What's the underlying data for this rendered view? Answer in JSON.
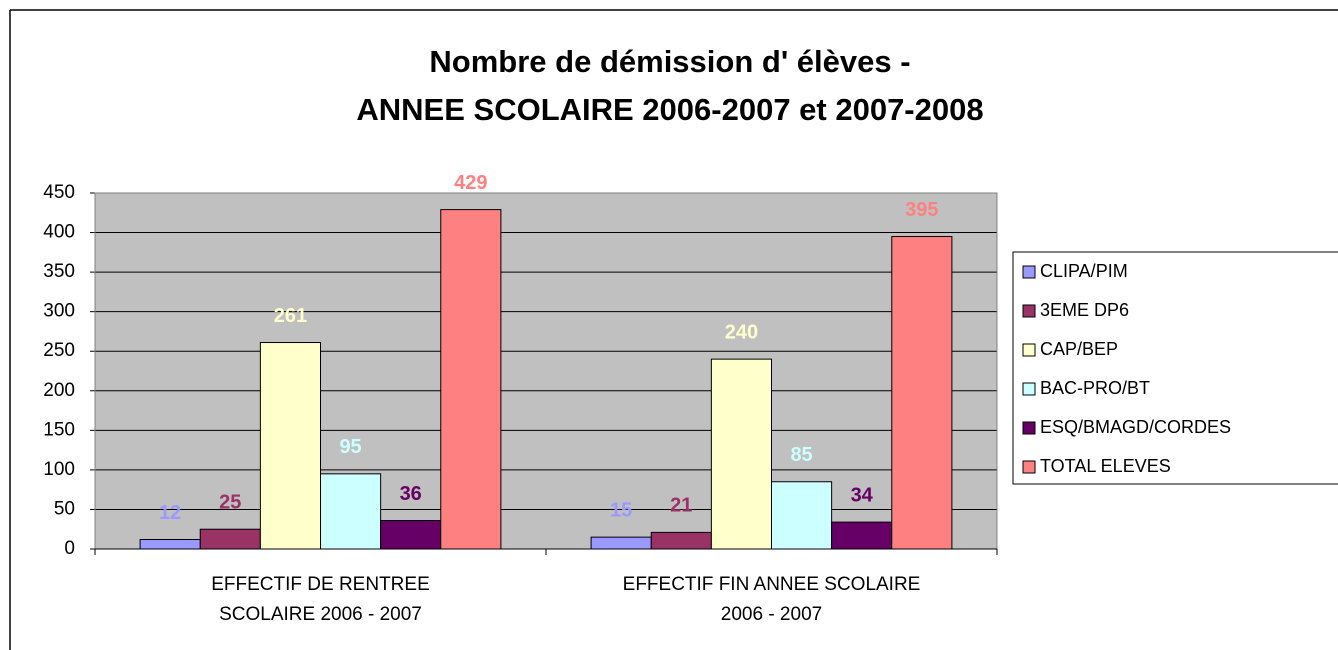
{
  "chart_data": {
    "type": "bar",
    "title": "Nombre  de démission d' élèves -\nANNEE SCOLAIRE 2006-2007 et 2007-2008",
    "categories": [
      "EFFECTIF DE  RENTREE\nSCOLAIRE 2006 - 2007",
      "EFFECTIF FIN ANNEE SCOLAIRE\n2006 - 2007"
    ],
    "series": [
      {
        "name": "CLIPA/PIM",
        "color": "#9999ff",
        "values": [
          12,
          15
        ]
      },
      {
        "name": "3EME DP6",
        "color": "#993366",
        "values": [
          25,
          21
        ]
      },
      {
        "name": "CAP/BEP",
        "color": "#ffffcc",
        "values": [
          261,
          240
        ]
      },
      {
        "name": "BAC-PRO/BT",
        "color": "#ccffff",
        "values": [
          95,
          85
        ]
      },
      {
        "name": "ESQ/BMAGD/CORDES",
        "color": "#660066",
        "values": [
          36,
          34
        ]
      },
      {
        "name": "TOTAL ELEVES",
        "color": "#ff8080",
        "values": [
          429,
          395
        ]
      }
    ],
    "ylim": [
      0,
      450
    ],
    "yticks": [
      0,
      50,
      100,
      150,
      200,
      250,
      300,
      350,
      400,
      450
    ],
    "grid": true,
    "legend": "right",
    "plot_background": "#c0c0c0"
  }
}
